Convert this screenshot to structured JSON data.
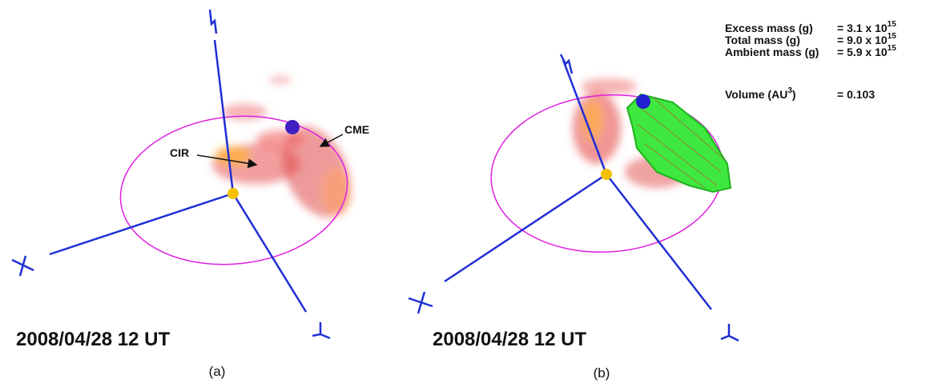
{
  "panels": [
    {
      "label": "(a)",
      "timestamp": "2008/04/28 12 UT",
      "annotations": [
        "CIR",
        "CME"
      ]
    },
    {
      "label": "(b)",
      "timestamp": "2008/04/28 12 UT"
    }
  ],
  "mass_table": {
    "rows": [
      {
        "label": "Excess mass (g)",
        "value": "= 3.1 x 10",
        "exponent": "15"
      },
      {
        "label": "Total mass (g)",
        "value": "= 9.0 x 10",
        "exponent": "15"
      },
      {
        "label": "Ambient mass (g)",
        "value": "= 5.9 x 10",
        "exponent": "15"
      }
    ],
    "volume": {
      "label": "Volume (AU",
      "exponent": "3",
      "label_end": ")",
      "value": "= 0.103"
    }
  }
}
